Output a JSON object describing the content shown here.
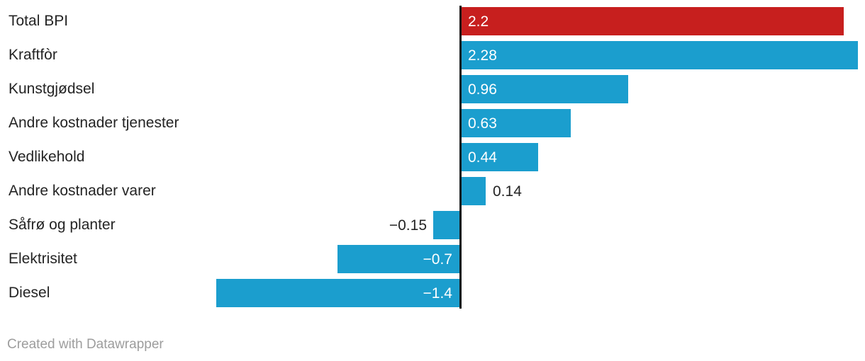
{
  "chart_data": {
    "type": "bar",
    "orientation": "horizontal",
    "title": "",
    "categories": [
      "Total BPI",
      "Kraftfòr",
      "Kunstgjødsel",
      "Andre kostnader tjenester",
      "Vedlikehold",
      "Andre kostnader varer",
      "Såfrø og planter",
      "Elektrisitet",
      "Diesel"
    ],
    "values": [
      2.2,
      2.28,
      0.96,
      0.63,
      0.44,
      0.14,
      -0.15,
      -0.7,
      -1.4
    ],
    "value_labels": [
      "2.2",
      "2.28",
      "0.96",
      "0.63",
      "0.44",
      "0.14",
      "−0.15",
      "−0.7",
      "−1.4"
    ],
    "value_label_inside": [
      true,
      true,
      true,
      true,
      true,
      false,
      false,
      true,
      true
    ],
    "bar_colors": [
      "#c71f1e",
      "#1b9ece",
      "#1b9ece",
      "#1b9ece",
      "#1b9ece",
      "#1b9ece",
      "#1b9ece",
      "#1b9ece",
      "#1b9ece"
    ],
    "palette": {
      "highlight_red": "#c71f1e",
      "series_blue": "#1b9ece",
      "baseline_black": "#141414"
    },
    "baseline": 0,
    "x_min": -1.4,
    "x_max": 2.28,
    "grid": false,
    "legend": false
  },
  "text_colors": {
    "category_label": "#242424",
    "value_inside": "#ffffff",
    "value_outside": "#242424",
    "attribution": "#9d9d9d"
  },
  "footer": {
    "attribution": "Created with Datawrapper"
  }
}
